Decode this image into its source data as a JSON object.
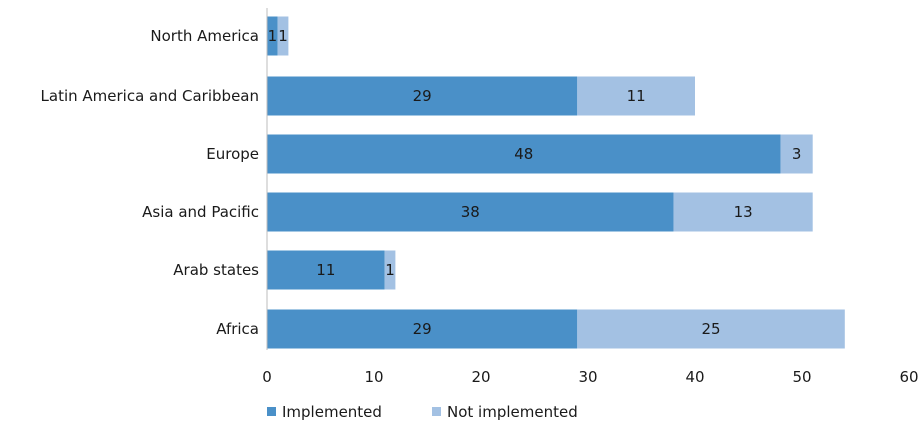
{
  "chart_data": {
    "type": "bar",
    "orientation": "horizontal",
    "stacked": true,
    "categories": [
      "North America",
      "Latin America and Caribbean",
      "Europe",
      "Asia and Pacific",
      "Arab states",
      "Africa"
    ],
    "series": [
      {
        "name": "Implemented",
        "values": [
          1,
          29,
          48,
          38,
          11,
          29
        ],
        "color": "#4a90c8"
      },
      {
        "name": "Not implemented",
        "values": [
          1,
          11,
          3,
          13,
          1,
          25
        ],
        "color": "#a3c1e3"
      }
    ],
    "xlim": [
      0,
      60
    ],
    "xticks": [
      0,
      10,
      20,
      30,
      40,
      50,
      60
    ],
    "grid": false,
    "legend_position": "bottom",
    "title": "",
    "xlabel": "",
    "ylabel": ""
  }
}
